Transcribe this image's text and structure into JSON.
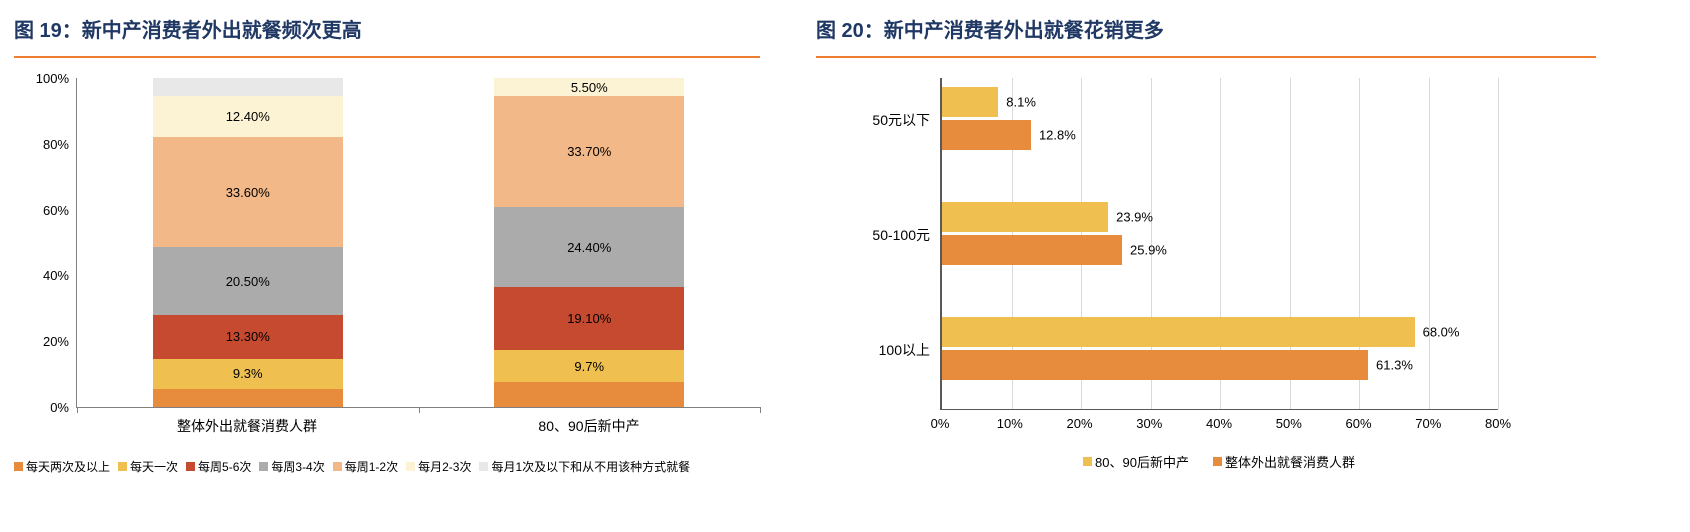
{
  "figure19": {
    "title": "图 19：新中产消费者外出就餐频次更高",
    "chart_data": {
      "type": "bar",
      "variant": "stacked-100-percent",
      "categories": [
        "整体外出就餐消费人群",
        "80、90后新中产"
      ],
      "series": [
        {
          "name": "每天两次及以上",
          "color": "#E78C3C",
          "values": [
            5.4,
            7.6
          ],
          "labels": [
            "",
            ""
          ]
        },
        {
          "name": "每天一次",
          "color": "#EFC050",
          "values": [
            9.3,
            9.7
          ],
          "labels": [
            "9.3%",
            "9.7%"
          ]
        },
        {
          "name": "每周5-6次",
          "color": "#C54A2F",
          "values": [
            13.3,
            19.1
          ],
          "labels": [
            "13.30%",
            "19.10%"
          ]
        },
        {
          "name": "每周3-4次",
          "color": "#ABABAB",
          "values": [
            20.5,
            24.4
          ],
          "labels": [
            "20.50%",
            "24.40%"
          ]
        },
        {
          "name": "每周1-2次",
          "color": "#F2B888",
          "values": [
            33.6,
            33.7
          ],
          "labels": [
            "33.60%",
            "33.70%"
          ]
        },
        {
          "name": "每月2-3次",
          "color": "#FBF3D3",
          "values": [
            12.4,
            5.5
          ],
          "labels": [
            "12.40%",
            "5.50%"
          ]
        },
        {
          "name": "每月1次及以下和从不用该种方式就餐",
          "color": "#E8E8E8",
          "values": [
            5.5,
            0
          ],
          "labels": [
            "",
            ""
          ]
        }
      ],
      "y_ticks": [
        "0%",
        "20%",
        "40%",
        "60%",
        "80%",
        "100%"
      ],
      "ylim": [
        0,
        100
      ],
      "legend_position": "bottom"
    }
  },
  "figure20": {
    "title": "图 20：新中产消费者外出就餐花销更多",
    "chart_data": {
      "type": "bar",
      "orientation": "horizontal",
      "categories": [
        "50元以下",
        "50-100元",
        "100以上"
      ],
      "series": [
        {
          "name": "80、90后新中产",
          "color": "#EFC050",
          "values": [
            8.1,
            23.9,
            68.0
          ],
          "labels": [
            "8.1%",
            "23.9%",
            "68.0%"
          ]
        },
        {
          "name": "整体外出就餐消费人群",
          "color": "#E78C3C",
          "values": [
            12.8,
            25.9,
            61.3
          ],
          "labels": [
            "12.8%",
            "25.9%",
            "61.3%"
          ]
        }
      ],
      "x_ticks": [
        "0%",
        "10%",
        "20%",
        "30%",
        "40%",
        "50%",
        "60%",
        "70%",
        "80%"
      ],
      "xlim": [
        0,
        80
      ],
      "grid": "vertical",
      "legend_position": "bottom"
    }
  }
}
